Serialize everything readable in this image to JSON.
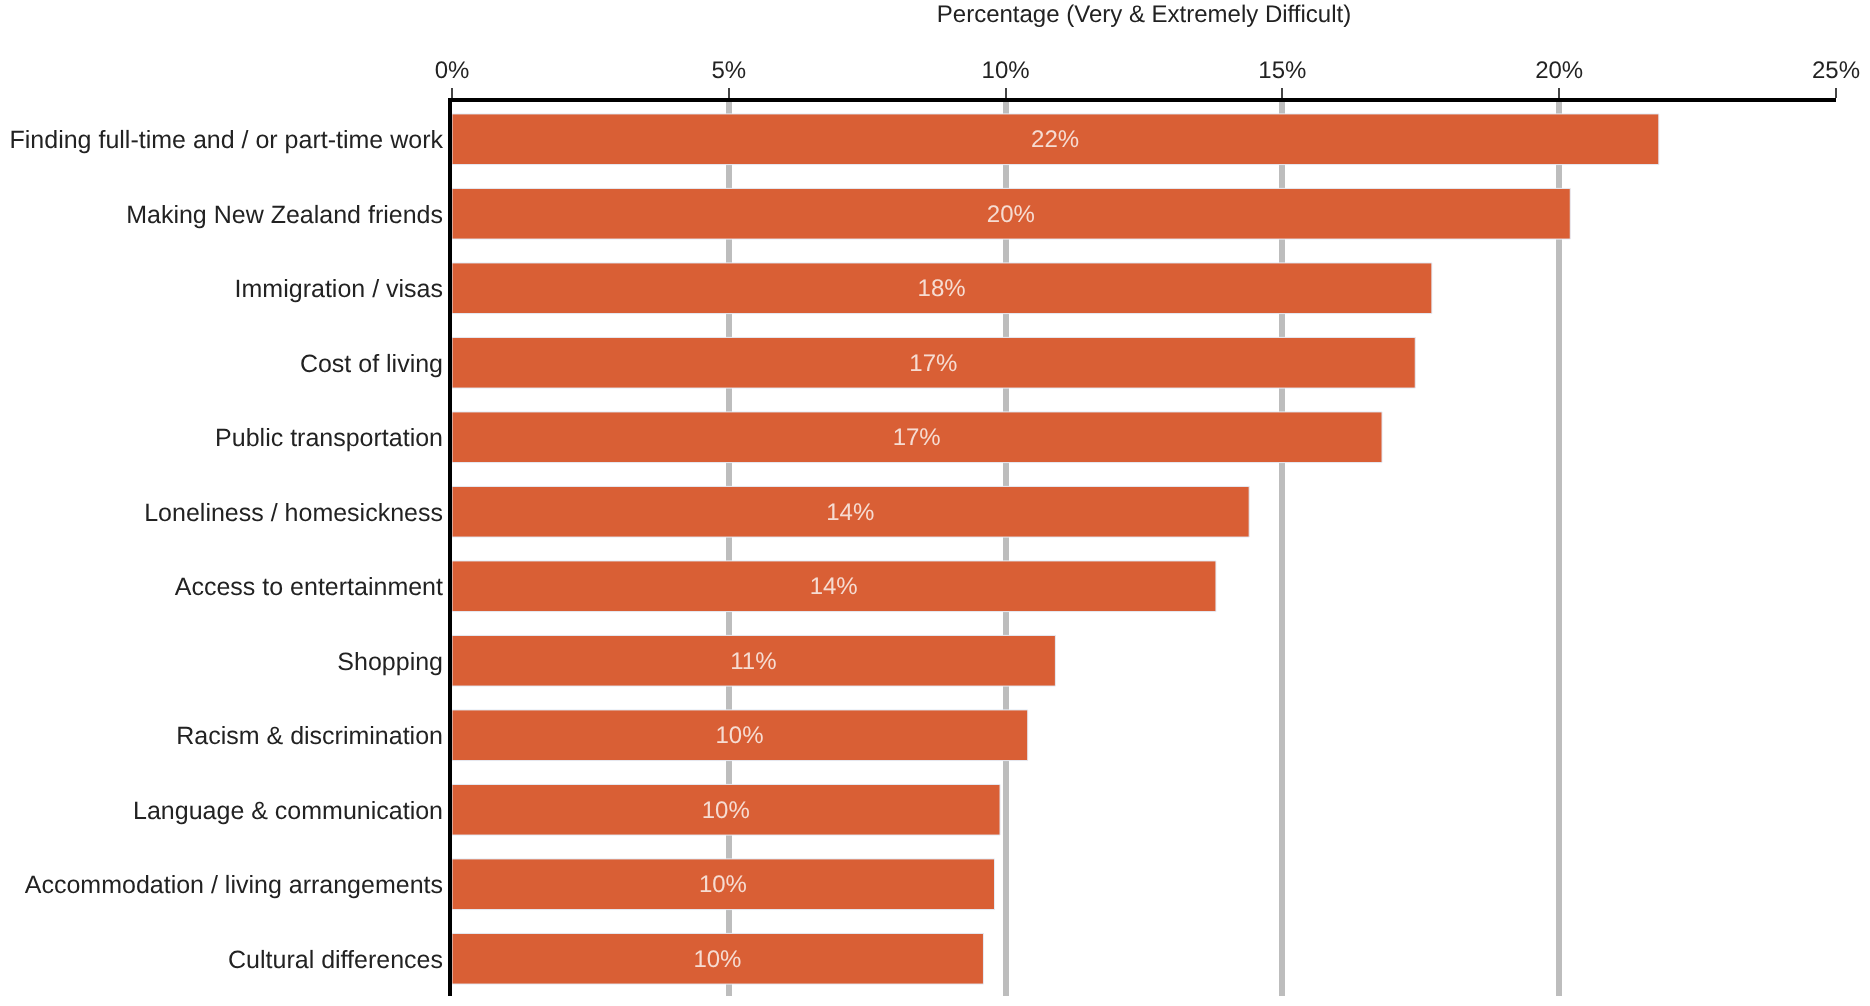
{
  "chart_data": {
    "type": "bar",
    "orientation": "horizontal",
    "xlabel": "Percentage (Very & Extremely Difficult)",
    "categories": [
      "Finding full-time and / or part-time work",
      "Making New Zealand friends",
      "Immigration / visas",
      "Cost of living",
      "Public transportation",
      "Loneliness / homesickness",
      "Access to entertainment",
      "Shopping",
      "Racism & discrimination",
      "Language & communication",
      "Accommodation / living arrangements",
      "Cultural differences"
    ],
    "values": [
      21.8,
      20.2,
      17.7,
      17.4,
      16.8,
      14.4,
      13.8,
      10.9,
      10.4,
      9.9,
      9.8,
      9.6
    ],
    "value_labels": [
      "22%",
      "20%",
      "18%",
      "17%",
      "17%",
      "14%",
      "14%",
      "11%",
      "10%",
      "10%",
      "10%",
      "10%"
    ],
    "color": "#d95f35",
    "xlim": [
      0,
      25
    ],
    "xticks": [
      {
        "value": 0,
        "label": "0%"
      },
      {
        "value": 5,
        "label": "5%"
      },
      {
        "value": 10,
        "label": "10%"
      },
      {
        "value": 15,
        "label": "15%"
      },
      {
        "value": 20,
        "label": "20%"
      },
      {
        "value": 25,
        "label": "25%"
      }
    ],
    "grid": "x",
    "legend": false
  }
}
